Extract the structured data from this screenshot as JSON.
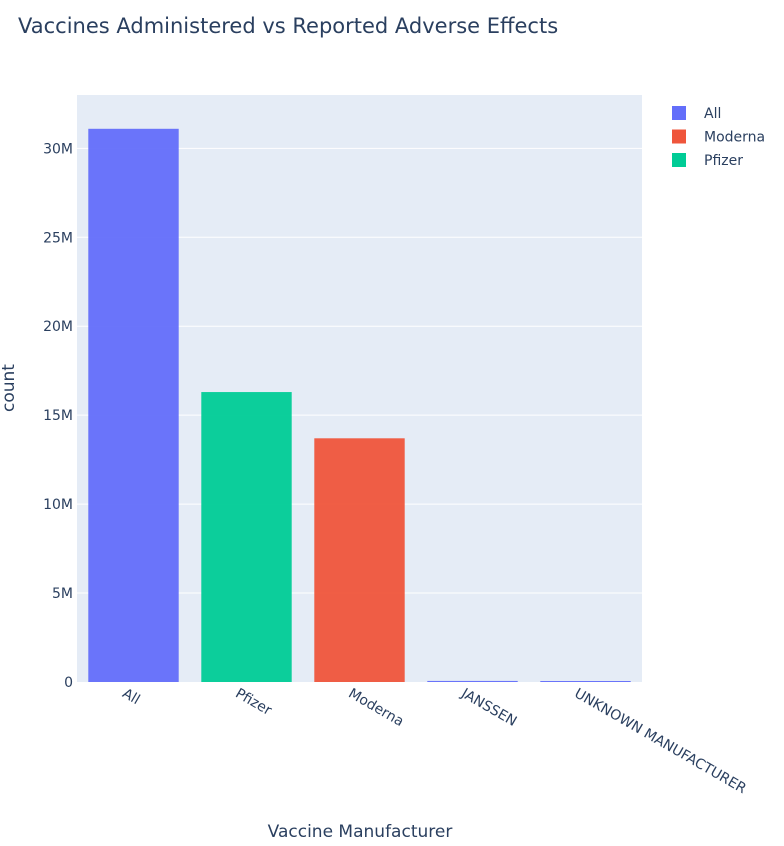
{
  "chart_data": {
    "type": "bar",
    "title": "Vaccines Administered vs Reported Adverse Effects",
    "xlabel": "Vaccine Manufacturer",
    "ylabel": "count",
    "categories": [
      "All",
      "Pfizer",
      "Moderna",
      "JANSSEN",
      "UNKNOWN MANUFACTURER"
    ],
    "series": [
      {
        "name": "All",
        "color": "#636efa",
        "values": [
          31100000,
          null,
          null,
          60000,
          5000
        ]
      },
      {
        "name": "Moderna",
        "color": "#ef553b",
        "values": [
          null,
          null,
          13700000,
          null,
          null
        ]
      },
      {
        "name": "Pfizer",
        "color": "#00cc96",
        "values": [
          null,
          16300000,
          null,
          null,
          null
        ]
      }
    ],
    "ylim": [
      0,
      33000000
    ],
    "yticks": [
      0,
      5000000,
      10000000,
      15000000,
      20000000,
      25000000,
      30000000
    ],
    "ytick_labels": [
      "0",
      "5M",
      "10M",
      "15M",
      "20M",
      "25M",
      "30M"
    ],
    "grid": true,
    "legend_position": "top-right",
    "plot_background": "#e5ecf6"
  }
}
